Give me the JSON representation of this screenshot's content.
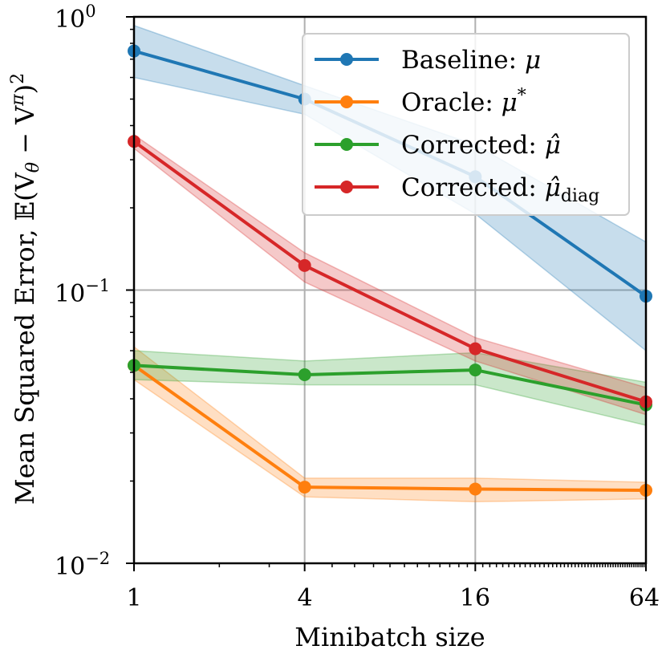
{
  "chart_data": {
    "type": "line",
    "x": [
      1,
      4,
      16,
      64
    ],
    "x_tick_labels": [
      "1",
      "4",
      "16",
      "64"
    ],
    "xlabel": "Minibatch size",
    "ylabel": "Mean Squared Error, 𝔼(V_θ − V^π)²",
    "ylabel_parts": {
      "main": "Mean Squared Error, 𝔼(V",
      "sub1": "θ",
      "mid": " − V",
      "sup": "π",
      "tail": ")",
      "sq": "2"
    },
    "yscale": "log",
    "ylim": [
      0.01,
      1
    ],
    "xscale": "log2",
    "xlim": [
      1,
      64
    ],
    "y_tick_labels": [
      {
        "base": "10",
        "exp": "0"
      },
      {
        "base": "10",
        "exp": "−1"
      },
      {
        "base": "10",
        "exp": "−2"
      }
    ],
    "grid": true,
    "legend_position": "top-right",
    "series": [
      {
        "name": "Baseline: μ",
        "name_main": "Baseline: ",
        "name_math": "μ",
        "name_sub": "",
        "name_sup": "",
        "color": "#1f77b4",
        "values": [
          0.75,
          0.5,
          0.26,
          0.095
        ],
        "lower": [
          0.6,
          0.44,
          0.19,
          0.06
        ],
        "upper": [
          0.93,
          0.56,
          0.34,
          0.15
        ]
      },
      {
        "name": "Oracle: μ*",
        "name_main": "Oracle: ",
        "name_math": "μ",
        "name_sub": "",
        "name_sup": "*",
        "color": "#ff7f0e",
        "values": [
          0.053,
          0.019,
          0.0187,
          0.0185
        ],
        "lower": [
          0.047,
          0.0175,
          0.0168,
          0.0172
        ],
        "upper": [
          0.062,
          0.0205,
          0.0205,
          0.0198
        ]
      },
      {
        "name": "Corrected: μ̂",
        "name_main": "Corrected: ",
        "name_math": "μ̂",
        "name_sub": "",
        "name_sup": "",
        "color": "#2ca02c",
        "values": [
          0.053,
          0.049,
          0.051,
          0.038
        ],
        "lower": [
          0.047,
          0.045,
          0.045,
          0.032
        ],
        "upper": [
          0.06,
          0.055,
          0.059,
          0.046
        ]
      },
      {
        "name": "Corrected: μ̂_diag",
        "name_main": "Corrected: ",
        "name_math": "μ̂",
        "name_sub": "diag",
        "name_sup": "",
        "color": "#d62728",
        "values": [
          0.35,
          0.123,
          0.061,
          0.039
        ],
        "lower": [
          0.33,
          0.107,
          0.055,
          0.035
        ],
        "upper": [
          0.37,
          0.137,
          0.067,
          0.044
        ]
      }
    ]
  }
}
